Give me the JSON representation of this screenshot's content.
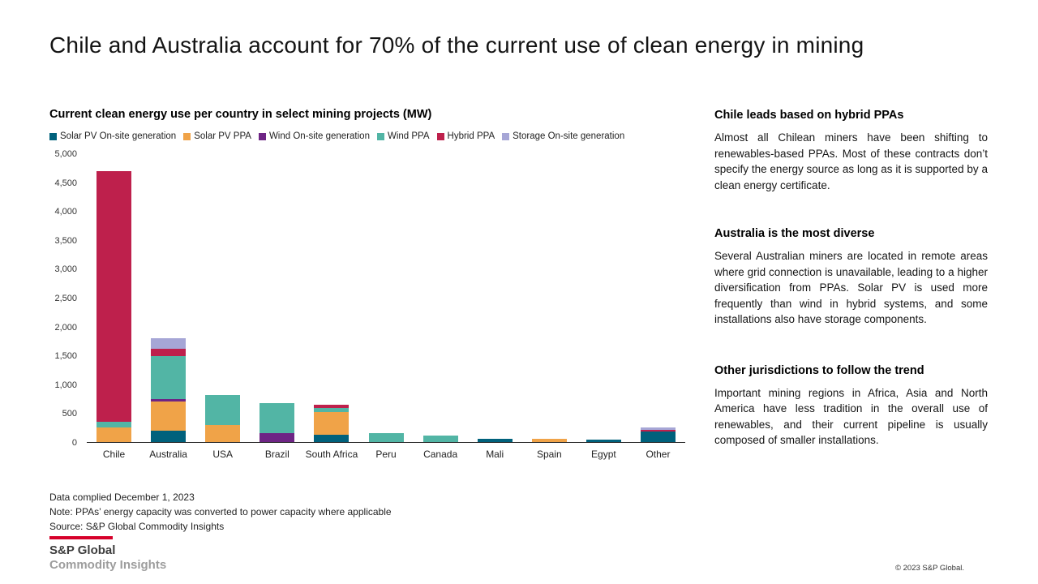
{
  "slide": {
    "title": "Chile and Australia account for 70% of the current use of clean energy in mining",
    "copyright": "© 2023 S&P Global."
  },
  "chart": {
    "title": "Current clean energy use per country in select mining projects (MW)"
  },
  "chart_data": {
    "type": "bar",
    "stacked": true,
    "title": "Current clean energy use per country in select mining projects (MW)",
    "categories": [
      "Chile",
      "Australia",
      "USA",
      "Brazil",
      "South Africa",
      "Peru",
      "Canada",
      "Mali",
      "Spain",
      "Egypt",
      "Other"
    ],
    "series": [
      {
        "name": "Solar PV On-site generation",
        "color": "#00617C",
        "values": [
          0,
          200,
          0,
          0,
          130,
          0,
          0,
          60,
          0,
          40,
          180
        ]
      },
      {
        "name": "Solar PV PPA",
        "color": "#F0A348",
        "values": [
          250,
          500,
          300,
          0,
          390,
          0,
          0,
          0,
          50,
          0,
          0
        ]
      },
      {
        "name": "Wind On-site generation",
        "color": "#6E2585",
        "values": [
          0,
          50,
          0,
          150,
          0,
          0,
          0,
          0,
          0,
          0,
          0
        ]
      },
      {
        "name": "Wind PPA",
        "color": "#52B5A5",
        "values": [
          100,
          750,
          520,
          530,
          70,
          150,
          110,
          0,
          0,
          0,
          0
        ]
      },
      {
        "name": "Hybrid PPA",
        "color": "#BE204C",
        "values": [
          4350,
          120,
          0,
          0,
          60,
          0,
          0,
          0,
          0,
          0,
          30
        ]
      },
      {
        "name": "Storage On-site generation",
        "color": "#A6A6D6",
        "values": [
          0,
          180,
          0,
          0,
          0,
          0,
          0,
          0,
          0,
          0,
          50
        ]
      }
    ],
    "xlabel": "",
    "ylabel": "",
    "ylim": [
      0,
      5000
    ],
    "yticks": [
      "5,000",
      "4,500",
      "4,000",
      "3,500",
      "3,000",
      "2,500",
      "2,000",
      "1,500",
      "1,000",
      "500",
      "0"
    ],
    "grid": false,
    "legend_position": "top"
  },
  "notes": {
    "line1": "Data complied December 1, 2023",
    "line2": "Note: PPAs’ energy capacity was converted to power capacity where applicable",
    "line3": "Source: S&P Global Commodity Insights"
  },
  "logo": {
    "accent_color": "#D6002A",
    "line1": "S&P Global",
    "line2": "Commodity Insights"
  },
  "sidebar": {
    "sections": [
      {
        "heading": "Chile leads based on hybrid PPAs",
        "body": "Almost all Chilean miners have been shifting to renewables-based PPAs. Most of these contracts don’t specify the energy source as long as it is supported by a clean energy certificate."
      },
      {
        "heading": "Australia is the most diverse",
        "body": "Several Australian miners are located in remote areas where grid connection is unavailable, leading to a higher diversification from PPAs. Solar PV is used more frequently than wind in hybrid systems, and some installations also have storage components."
      },
      {
        "heading": "Other jurisdictions to follow the trend",
        "body": "Important mining regions in Africa, Asia and North America have less tradition in the overall use of renewables, and their current pipeline is usually composed of smaller installations."
      }
    ]
  }
}
